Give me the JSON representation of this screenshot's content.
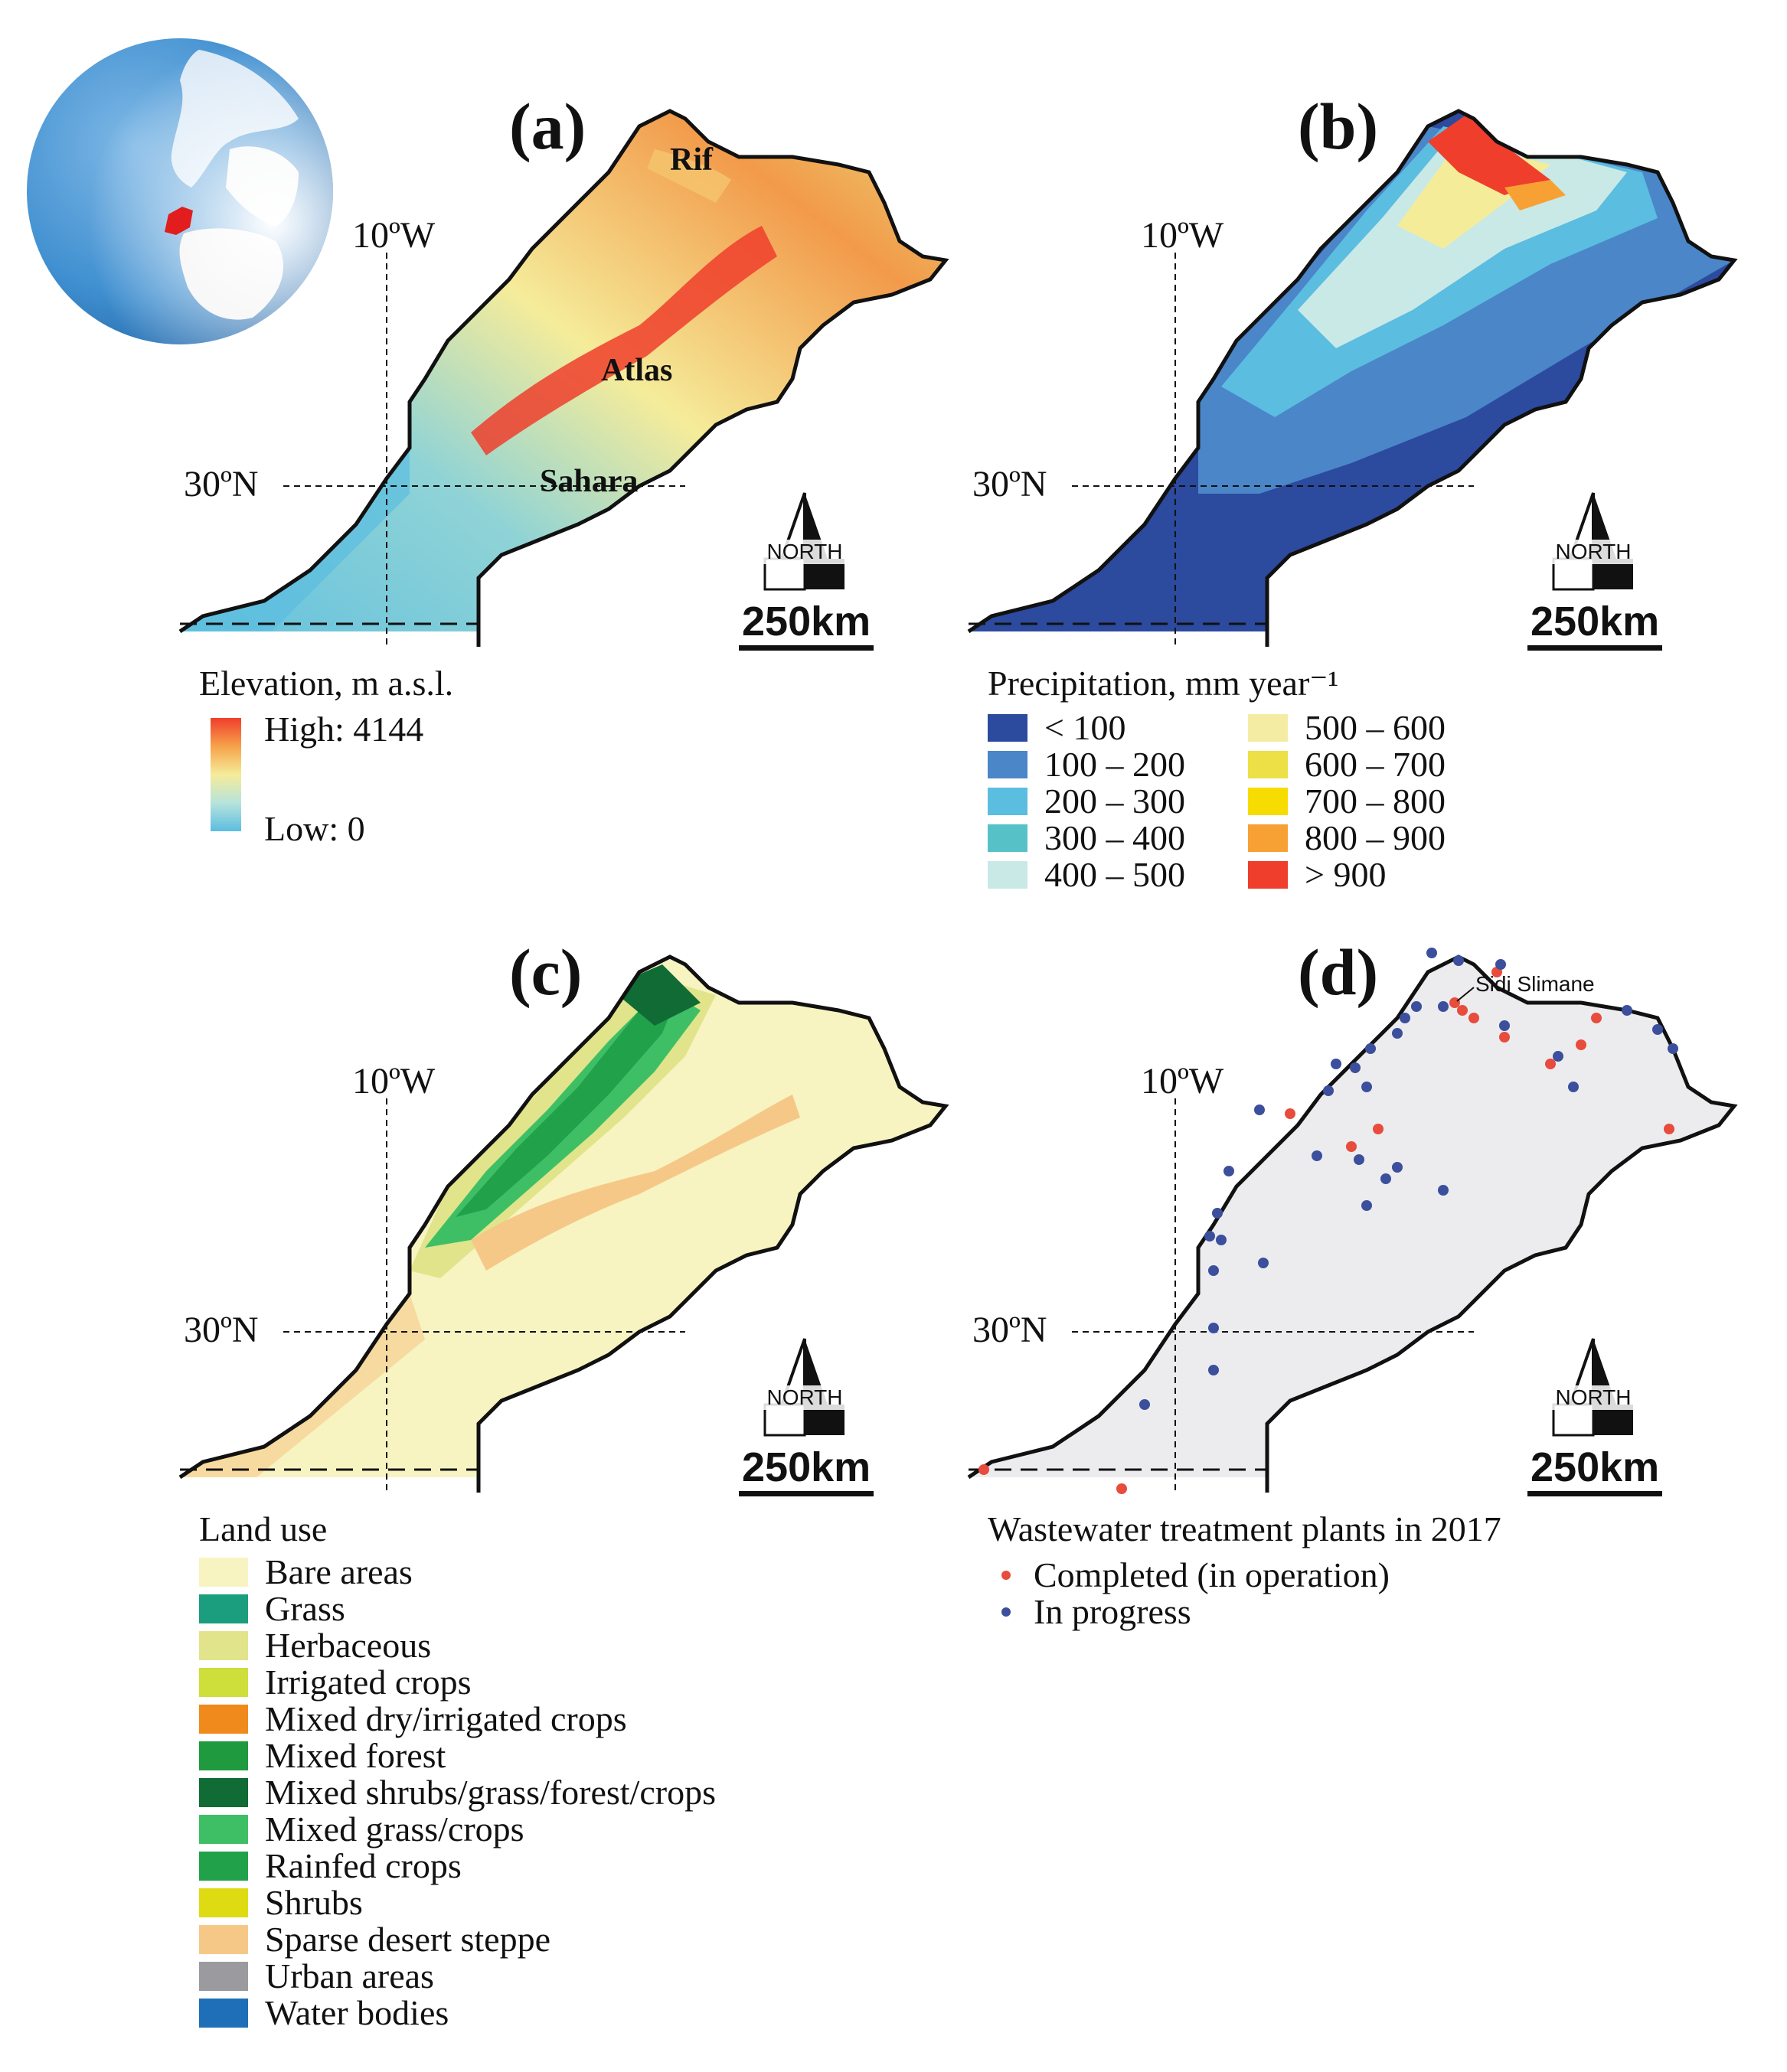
{
  "colors": {
    "completed": "#e74c3c",
    "in_progress": "#3b4f9c",
    "ocean": "#3f8fd0",
    "highlight": "#e11d1d",
    "boundary": "#111111"
  },
  "shared": {
    "lon_label": "10ºW",
    "lat_label": "30ºN",
    "scale_label": "250km",
    "north_label": "NORTH"
  },
  "panels": {
    "a": {
      "label": "(a)",
      "places": [
        "Rif",
        "Atlas",
        "Sahara"
      ],
      "legend_title": "Elevation, m a.s.l.",
      "legend_high": "High: 4144",
      "legend_low": "Low: 0"
    },
    "b": {
      "label": "(b)",
      "legend_title": "Precipitation, mm year⁻¹",
      "classes": [
        {
          "label": "< 100",
          "color": "#2c4a9e"
        },
        {
          "label": "100 – 200",
          "color": "#4a86c8"
        },
        {
          "label": "200 – 300",
          "color": "#5bbde0"
        },
        {
          "label": "300 – 400",
          "color": "#56c2c7"
        },
        {
          "label": "400 – 500",
          "color": "#c9e9e6"
        },
        {
          "label": "500 – 600",
          "color": "#f5eca4"
        },
        {
          "label": "600 – 700",
          "color": "#ece046"
        },
        {
          "label": "700 – 800",
          "color": "#f6dc00"
        },
        {
          "label": "800 – 900",
          "color": "#f7a135"
        },
        {
          "label": "> 900",
          "color": "#ef3e2c"
        }
      ]
    },
    "c": {
      "label": "(c)",
      "legend_title": "Land use",
      "classes": [
        {
          "label": "Bare areas",
          "color": "#f7f4c2"
        },
        {
          "label": "Grass",
          "color": "#1a9e7d"
        },
        {
          "label": "Herbaceous",
          "color": "#e1e48a"
        },
        {
          "label": "Irrigated crops",
          "color": "#cede3a"
        },
        {
          "label": "Mixed dry/irrigated crops",
          "color": "#f08a1c"
        },
        {
          "label": "Mixed forest",
          "color": "#1f9a3f"
        },
        {
          "label": "Mixed shrubs/grass/forest/crops",
          "color": "#116b35"
        },
        {
          "label": "Mixed grass/crops",
          "color": "#3fbf65"
        },
        {
          "label": "Rainfed crops",
          "color": "#21a14a"
        },
        {
          "label": "Shrubs",
          "color": "#dfdb12"
        },
        {
          "label": "Sparse desert steppe",
          "color": "#f6c887"
        },
        {
          "label": "Urban areas",
          "color": "#9a9a9f"
        },
        {
          "label": "Water bodies",
          "color": "#1f6fb8"
        }
      ]
    },
    "d": {
      "label": "(d)",
      "callout": "Sidi Slimane",
      "legend_title": "Wastewater treatment plants in 2017",
      "legend_completed": "Completed (in operation)",
      "legend_in_progress": "In progress"
    }
  }
}
